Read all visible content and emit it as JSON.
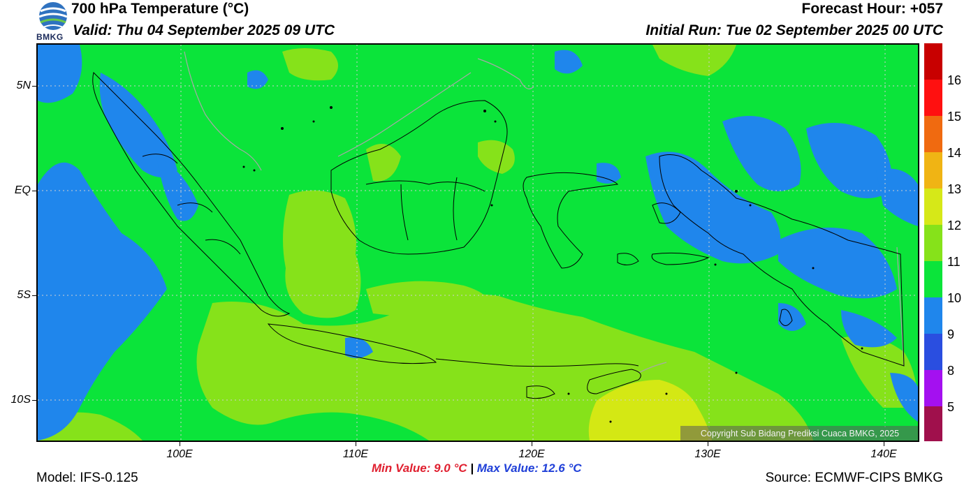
{
  "header": {
    "title": "700 hPa Temperature (°C)",
    "valid": "Valid: Thu 04 September 2025 09 UTC",
    "forecast_hour": "Forecast Hour: +057",
    "initial_run": "Initial Run: Tue 02 September 2025 00 UTC",
    "logo_text": "BMKG"
  },
  "map": {
    "lat_labels": [
      "5N",
      "EQ",
      "5S",
      "10S"
    ],
    "lon_labels": [
      "100E",
      "110E",
      "120E",
      "130E",
      "140E"
    ],
    "colors": {
      "base": "#0be43a",
      "warm": "#86e21a",
      "warmer": "#d4e814",
      "cool": "#1f86ec",
      "border": "#000000",
      "other_border": "#a8a8a8"
    },
    "copyright": "Copyright Sub Bidang Prediksi Cuaca BMKG, 2025"
  },
  "colorbar": {
    "labels": [
      "16",
      "15",
      "14",
      "13",
      "12",
      "11",
      "10",
      "9",
      "8",
      "5"
    ],
    "colors": [
      "#c80000",
      "#ff1010",
      "#ff2a1a",
      "#f06a10",
      "#f0b414",
      "#d6e818",
      "#86e21a",
      "#0be43a",
      "#1f86ec",
      "#2a4ee0",
      "#a410f0",
      "#a0104c"
    ]
  },
  "footer": {
    "min_value": "Min Value: 9.0 °C",
    "separator": "|",
    "max_value": "Max Value: 12.6 °C",
    "model": "Model: IFS-0.125",
    "source": "Source: ECMWF-CIPS BMKG"
  }
}
